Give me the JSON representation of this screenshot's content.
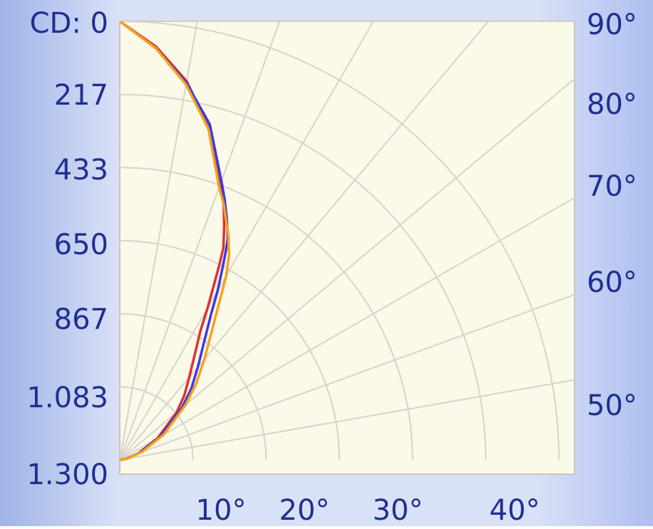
{
  "chart_data": {
    "type": "polar-line",
    "title": "",
    "cd_prefix": "CD: ",
    "radial_ticks": [
      "0",
      "217",
      "433",
      "650",
      "867",
      "1.083",
      "1.300"
    ],
    "radial_range": [
      0,
      1300
    ],
    "angle_ticks_right": [
      "90°",
      "80°",
      "70°",
      "60°",
      "50°"
    ],
    "angle_ticks_bottom": [
      "10°",
      "20°",
      "30°",
      "40°"
    ],
    "grid": true,
    "colors": {
      "background_left": "#9fb3e6",
      "background_right": "#b9c9f2",
      "plot_bg": "#fbf9e8",
      "grid": "#d6d4cc",
      "axis_text": "#1f2f8f"
    },
    "series": [
      {
        "color": "#e03030",
        "points": [
          [
            0,
            1300
          ],
          [
            5,
            1230
          ],
          [
            10,
            1140
          ],
          [
            15,
            1020
          ],
          [
            20,
            870
          ],
          [
            22,
            820
          ],
          [
            24,
            760
          ],
          [
            26,
            700
          ],
          [
            27,
            650
          ],
          [
            28,
            600
          ],
          [
            30,
            520
          ],
          [
            32,
            450
          ],
          [
            35,
            390
          ],
          [
            40,
            320
          ],
          [
            45,
            270
          ],
          [
            50,
            220
          ],
          [
            60,
            130
          ],
          [
            70,
            60
          ],
          [
            80,
            20
          ],
          [
            90,
            0
          ]
        ]
      },
      {
        "color": "#3a3ae8",
        "points": [
          [
            0,
            1300
          ],
          [
            5,
            1225
          ],
          [
            10,
            1135
          ],
          [
            15,
            1030
          ],
          [
            20,
            880
          ],
          [
            22,
            830
          ],
          [
            24,
            780
          ],
          [
            26,
            730
          ],
          [
            27,
            690
          ],
          [
            28,
            650
          ],
          [
            30,
            580
          ],
          [
            32,
            510
          ],
          [
            35,
            440
          ],
          [
            40,
            360
          ],
          [
            45,
            300
          ],
          [
            50,
            240
          ],
          [
            60,
            140
          ],
          [
            70,
            65
          ],
          [
            80,
            20
          ],
          [
            90,
            0
          ]
        ]
      },
      {
        "color": "#f5a21a",
        "points": [
          [
            0,
            1300
          ],
          [
            5,
            1225
          ],
          [
            10,
            1130
          ],
          [
            15,
            1015
          ],
          [
            20,
            860
          ],
          [
            22,
            820
          ],
          [
            24,
            775
          ],
          [
            26,
            735
          ],
          [
            27,
            710
          ],
          [
            28,
            690
          ],
          [
            30,
            630
          ],
          [
            32,
            560
          ],
          [
            35,
            480
          ],
          [
            40,
            390
          ],
          [
            45,
            320
          ],
          [
            50,
            255
          ],
          [
            60,
            150
          ],
          [
            70,
            70
          ],
          [
            80,
            22
          ],
          [
            90,
            0
          ]
        ]
      }
    ]
  }
}
